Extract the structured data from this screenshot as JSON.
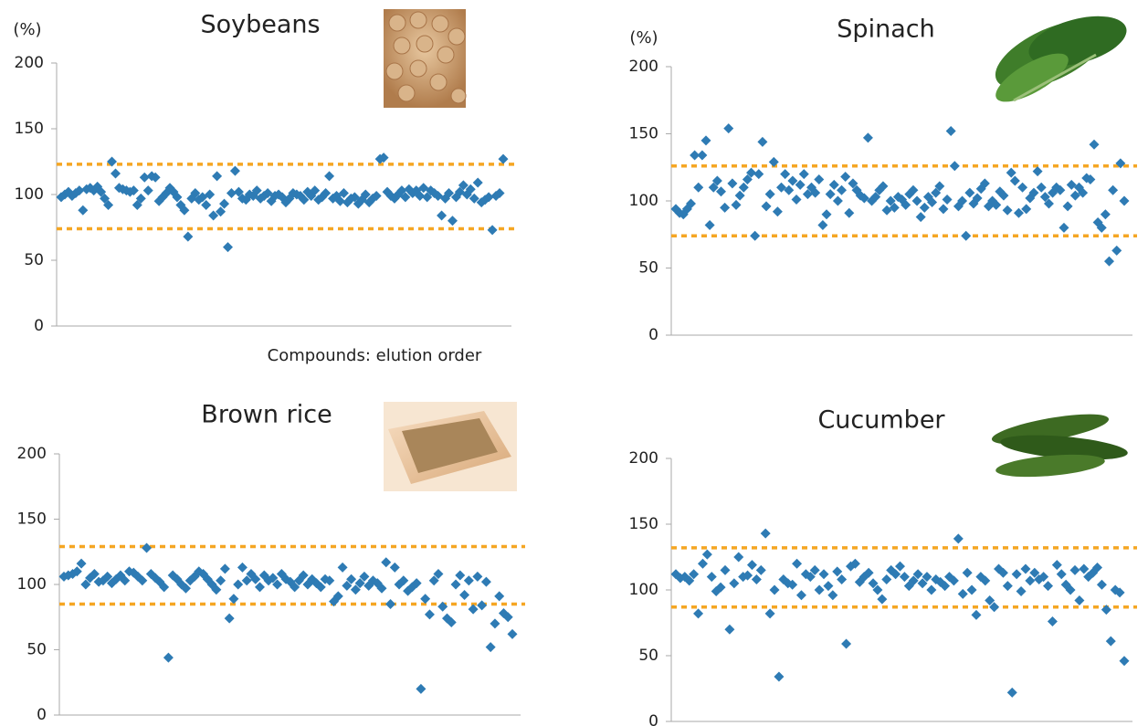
{
  "chart_data": [
    {
      "type": "scatter",
      "title": "Soybeans",
      "y_label": "(%)",
      "x_label": "Compounds: elution order",
      "ylim": [
        0,
        200
      ],
      "yticks": [
        0,
        50,
        100,
        150,
        200
      ],
      "color": "#2e7bb4",
      "ref_color": "#f5a623",
      "ref_lines": [
        123,
        74
      ],
      "values": [
        98,
        100,
        102,
        99,
        101,
        103,
        88,
        104,
        105,
        103,
        106,
        102,
        97,
        92,
        125,
        116,
        105,
        104,
        103,
        102,
        103,
        92,
        97,
        113,
        103,
        114,
        113,
        95,
        98,
        101,
        105,
        102,
        98,
        92,
        88,
        68,
        97,
        101,
        96,
        98,
        92,
        100,
        84,
        114,
        87,
        93,
        60,
        101,
        118,
        102,
        97,
        96,
        100,
        99,
        103,
        97,
        99,
        101,
        95,
        99,
        100,
        98,
        94,
        97,
        101,
        100,
        99,
        96,
        102,
        99,
        103,
        96,
        98,
        101,
        114,
        97,
        99,
        95,
        101,
        94,
        97,
        98,
        93,
        96,
        100,
        94,
        97,
        99,
        127,
        128,
        102,
        99,
        97,
        100,
        103,
        98,
        104,
        101,
        103,
        99,
        105,
        98,
        103,
        101,
        99,
        84,
        97,
        101,
        80,
        98,
        102,
        107,
        100,
        104,
        97,
        109,
        94,
        96,
        98,
        73,
        99,
        101,
        127
      ]
    },
    {
      "type": "scatter",
      "title": "Spinach",
      "y_label": "(%)",
      "ylim": [
        0,
        200
      ],
      "yticks": [
        0,
        50,
        100,
        150,
        200
      ],
      "color": "#2e7bb4",
      "ref_color": "#f5a623",
      "ref_lines": [
        126,
        74
      ],
      "values": [
        94,
        91,
        90,
        94,
        98,
        134,
        110,
        134,
        145,
        82,
        110,
        115,
        107,
        95,
        154,
        113,
        97,
        104,
        110,
        116,
        121,
        74,
        120,
        144,
        96,
        105,
        129,
        92,
        110,
        120,
        108,
        115,
        101,
        112,
        120,
        105,
        110,
        106,
        116,
        82,
        90,
        105,
        112,
        100,
        108,
        118,
        91,
        113,
        108,
        104,
        102,
        147,
        100,
        103,
        108,
        111,
        93,
        100,
        95,
        103,
        101,
        97,
        105,
        108,
        100,
        88,
        95,
        103,
        99,
        106,
        111,
        94,
        101,
        152,
        126,
        96,
        100,
        74,
        106,
        98,
        102,
        109,
        113,
        96,
        100,
        97,
        107,
        104,
        93,
        121,
        115,
        91,
        110,
        94,
        102,
        106,
        122,
        110,
        103,
        98,
        106,
        110,
        108,
        80,
        96,
        112,
        104,
        110,
        106,
        117,
        116,
        142,
        84,
        80,
        90,
        55,
        108,
        63,
        128,
        100
      ]
    },
    {
      "type": "scatter",
      "title": "Brown rice",
      "ylim": [
        0,
        200
      ],
      "yticks": [
        0,
        50,
        100,
        150,
        200
      ],
      "color": "#2e7bb4",
      "ref_color": "#f5a623",
      "ref_lines": [
        129,
        85
      ],
      "values": [
        106,
        107,
        108,
        110,
        116,
        100,
        105,
        108,
        102,
        103,
        106,
        101,
        104,
        107,
        103,
        110,
        109,
        106,
        103,
        128,
        108,
        105,
        102,
        98,
        44,
        107,
        104,
        100,
        97,
        103,
        106,
        110,
        108,
        104,
        100,
        96,
        103,
        112,
        74,
        89,
        100,
        113,
        103,
        108,
        104,
        98,
        107,
        103,
        105,
        100,
        108,
        104,
        102,
        98,
        103,
        107,
        100,
        104,
        101,
        98,
        104,
        103,
        87,
        91,
        113,
        99,
        104,
        96,
        101,
        106,
        99,
        103,
        101,
        97,
        117,
        85,
        113,
        100,
        103,
        95,
        98,
        101,
        20,
        89,
        77,
        103,
        108,
        83,
        74,
        71,
        100,
        107,
        92,
        103,
        81,
        106,
        84,
        102,
        52,
        70,
        91,
        78,
        75,
        62
      ]
    },
    {
      "type": "scatter",
      "title": "Cucumber",
      "ylim": [
        0,
        200
      ],
      "yticks": [
        0,
        50,
        100,
        150,
        200
      ],
      "color": "#2e7bb4",
      "ref_color": "#f5a623",
      "ref_lines": [
        132,
        87
      ],
      "values": [
        112,
        109,
        110,
        107,
        112,
        82,
        120,
        127,
        110,
        99,
        102,
        115,
        70,
        105,
        125,
        110,
        111,
        119,
        108,
        115,
        143,
        82,
        100,
        34,
        108,
        105,
        104,
        120,
        96,
        112,
        110,
        115,
        100,
        112,
        103,
        96,
        114,
        108,
        59,
        118,
        120,
        106,
        110,
        113,
        105,
        100,
        93,
        108,
        115,
        112,
        118,
        110,
        103,
        107,
        112,
        105,
        110,
        100,
        108,
        106,
        103,
        110,
        107,
        139,
        97,
        113,
        100,
        81,
        110,
        107,
        92,
        87,
        116,
        113,
        103,
        22,
        112,
        99,
        116,
        107,
        113,
        108,
        110,
        103,
        76,
        119,
        112,
        104,
        100,
        115,
        92,
        116,
        110,
        113,
        117,
        104,
        85,
        61,
        100,
        98,
        46
      ]
    }
  ]
}
